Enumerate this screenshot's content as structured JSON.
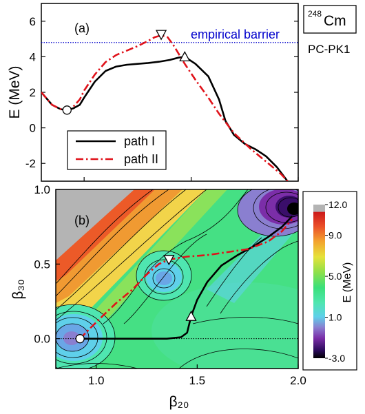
{
  "figure": {
    "tag_nucleus_mass": "248",
    "tag_nucleus_symbol": "Cm",
    "tag_model": "PC-PK1"
  },
  "chart_data": [
    {
      "panel": "(a)",
      "type": "line",
      "ylabel": "E (MeV)",
      "xlim": [
        0.8,
        2.0
      ],
      "ylim": [
        -3.0,
        7.0
      ],
      "yticks": [
        "-2",
        "0",
        "2",
        "4",
        "6"
      ],
      "grid": false,
      "legend_position": "bottom-left",
      "series": [
        {
          "name": "path I",
          "color": "#000000",
          "style": "solid",
          "x": [
            0.8,
            0.85,
            0.89,
            0.92,
            0.95,
            0.98,
            1.0,
            1.05,
            1.1,
            1.15,
            1.2,
            1.25,
            1.3,
            1.35,
            1.4,
            1.44,
            1.47,
            1.52,
            1.58,
            1.63,
            1.66,
            1.7,
            1.75,
            1.8,
            1.85,
            1.9,
            1.95
          ],
          "y": [
            2.0,
            1.3,
            1.05,
            1.0,
            1.1,
            1.3,
            1.7,
            2.6,
            3.2,
            3.45,
            3.55,
            3.6,
            3.65,
            3.72,
            3.82,
            3.95,
            4.0,
            3.6,
            2.9,
            1.6,
            0.4,
            -0.4,
            -0.9,
            -1.2,
            -1.6,
            -2.2,
            -3.0
          ]
        },
        {
          "name": "path II",
          "color": "#e0121a",
          "style": "dash-dot",
          "x": [
            0.8,
            0.85,
            0.89,
            0.92,
            0.95,
            0.98,
            1.0,
            1.05,
            1.1,
            1.15,
            1.2,
            1.25,
            1.3,
            1.33,
            1.36,
            1.39,
            1.42,
            1.47,
            1.52,
            1.58,
            1.63,
            1.7,
            1.78,
            1.85,
            1.92,
            1.95
          ],
          "y": [
            2.0,
            1.3,
            1.05,
            1.0,
            1.2,
            1.6,
            2.1,
            3.0,
            3.7,
            4.1,
            4.35,
            4.6,
            4.9,
            5.1,
            5.2,
            5.1,
            4.6,
            3.6,
            2.7,
            1.7,
            0.8,
            -0.3,
            -1.2,
            -1.9,
            -2.6,
            -3.0
          ]
        }
      ],
      "annotations": [
        {
          "text": "empirical barrier",
          "type": "hline",
          "y": 4.8,
          "color": "#0000cc"
        }
      ],
      "markers": [
        {
          "shape": "circle",
          "x": 0.92,
          "y": 1.0
        },
        {
          "shape": "triangle-down",
          "x": 1.36,
          "y": 5.25
        },
        {
          "shape": "triangle-up",
          "x": 1.47,
          "y": 4.0
        }
      ]
    },
    {
      "panel": "(b)",
      "type": "heatmap",
      "xlabel": "β₂₀",
      "ylabel": "β₃₀",
      "xlim": [
        0.8,
        2.0
      ],
      "ylim": [
        -0.2,
        1.0
      ],
      "xticks": [
        "1.0",
        "1.5",
        "2.0"
      ],
      "yticks": [
        "0.0",
        "0.5",
        "1.0"
      ],
      "grid": false,
      "colorbar": {
        "label": "E (MeV)",
        "range": [
          -3.0,
          12.0
        ],
        "ticks": [
          "12.0",
          "9.0",
          "5.0",
          "1.0",
          "-3.0"
        ],
        "tick_values": [
          12.0,
          9.0,
          5.0,
          1.0,
          -3.0
        ],
        "position": "right"
      },
      "series": [
        {
          "name": "path I",
          "color": "#000000",
          "style": "solid",
          "x": [
            0.92,
            1.05,
            1.2,
            1.35,
            1.42,
            1.45,
            1.47,
            1.5,
            1.55,
            1.62,
            1.7,
            1.78,
            1.85,
            1.92,
            1.97
          ],
          "y": [
            0.0,
            0.0,
            0.0,
            0.0,
            0.01,
            0.04,
            0.15,
            0.26,
            0.38,
            0.49,
            0.56,
            0.62,
            0.68,
            0.75,
            0.82
          ]
        },
        {
          "name": "path II",
          "color": "#e0121a",
          "style": "dash-dot",
          "x": [
            0.92,
            0.97,
            1.03,
            1.1,
            1.18,
            1.25,
            1.31,
            1.36,
            1.45,
            1.55,
            1.65,
            1.75,
            1.85,
            1.92,
            1.97
          ],
          "y": [
            0.0,
            0.07,
            0.15,
            0.24,
            0.33,
            0.43,
            0.5,
            0.53,
            0.55,
            0.56,
            0.58,
            0.6,
            0.65,
            0.72,
            0.8
          ]
        }
      ],
      "markers": [
        {
          "shape": "circle",
          "x": 0.92,
          "y": 0.0
        },
        {
          "shape": "triangle-down",
          "x": 1.36,
          "y": 0.53
        },
        {
          "shape": "triangle-up",
          "x": 1.47,
          "y": 0.15
        }
      ]
    }
  ]
}
